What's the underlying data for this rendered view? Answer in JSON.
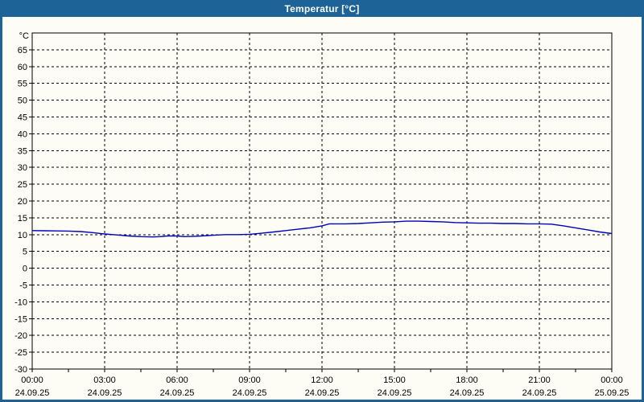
{
  "window": {
    "title": "Temperatur [°C]"
  },
  "colors": {
    "titlebar_bg": "#1d6398",
    "frame": "#1d6398",
    "title_text": "#ffffff",
    "plot_bg": "#fdfdf6",
    "grid": "#000000",
    "axis": "#000000",
    "line": "#0000bb",
    "label_text": "#000000"
  },
  "chart_data": {
    "type": "line",
    "title": "Temperatur [°C]",
    "xlabel": "",
    "ylabel": "°C",
    "ylim": [
      -30,
      70
    ],
    "y_tick_step": 5,
    "y_ticks": [
      65,
      60,
      55,
      50,
      45,
      40,
      35,
      30,
      25,
      20,
      15,
      10,
      5,
      0,
      -5,
      -10,
      -15,
      -20,
      -25,
      -30
    ],
    "grid": "dashed",
    "legend_position": "none",
    "x_hours_range": [
      0,
      24
    ],
    "x_minor_tick_step_hours": 1.5,
    "x_major_ticks": [
      {
        "hour": 0,
        "time": "00:00",
        "date": "24.09.25"
      },
      {
        "hour": 3,
        "time": "03:00",
        "date": "24.09.25"
      },
      {
        "hour": 6,
        "time": "06:00",
        "date": "24.09.25"
      },
      {
        "hour": 9,
        "time": "09:00",
        "date": "24.09.25"
      },
      {
        "hour": 12,
        "time": "12:00",
        "date": "24.09.25"
      },
      {
        "hour": 15,
        "time": "15:00",
        "date": "24.09.25"
      },
      {
        "hour": 18,
        "time": "18:00",
        "date": "24.09.25"
      },
      {
        "hour": 21,
        "time": "21:00",
        "date": "24.09.25"
      },
      {
        "hour": 24,
        "time": "00:00",
        "date": "25.09.25"
      }
    ],
    "series": [
      {
        "name": "Temperatur",
        "color": "#0000bb",
        "points_hour_value": [
          [
            0,
            11.2
          ],
          [
            0.5,
            11.15
          ],
          [
            1,
            11.1
          ],
          [
            1.5,
            11.05
          ],
          [
            2,
            10.9
          ],
          [
            2.5,
            10.6
          ],
          [
            3,
            10.2
          ],
          [
            3.5,
            9.9
          ],
          [
            4,
            9.6
          ],
          [
            4.5,
            9.4
          ],
          [
            5,
            9.3
          ],
          [
            5.3,
            9.4
          ],
          [
            5.6,
            9.6
          ],
          [
            6,
            9.6
          ],
          [
            6.3,
            9.4
          ],
          [
            6.7,
            9.5
          ],
          [
            7,
            9.6
          ],
          [
            7.5,
            9.8
          ],
          [
            8,
            10.0
          ],
          [
            8.5,
            10.0
          ],
          [
            9,
            10.1
          ],
          [
            9.5,
            10.4
          ],
          [
            10,
            10.8
          ],
          [
            10.5,
            11.2
          ],
          [
            11,
            11.6
          ],
          [
            11.5,
            12.0
          ],
          [
            12,
            12.6
          ],
          [
            12.3,
            13.2
          ],
          [
            12.7,
            13.2
          ],
          [
            13,
            13.2
          ],
          [
            13.5,
            13.3
          ],
          [
            14,
            13.5
          ],
          [
            14.5,
            13.7
          ],
          [
            15,
            13.8
          ],
          [
            15.5,
            14.0
          ],
          [
            16,
            14.0
          ],
          [
            16.5,
            13.9
          ],
          [
            17,
            13.8
          ],
          [
            17.5,
            13.6
          ],
          [
            18,
            13.5
          ],
          [
            18.5,
            13.4
          ],
          [
            19,
            13.4
          ],
          [
            19.5,
            13.3
          ],
          [
            20,
            13.3
          ],
          [
            20.5,
            13.2
          ],
          [
            21,
            13.2
          ],
          [
            21.5,
            13.1
          ],
          [
            22,
            12.6
          ],
          [
            22.5,
            12.0
          ],
          [
            23,
            11.4
          ],
          [
            23.5,
            10.8
          ],
          [
            24,
            10.3
          ]
        ]
      }
    ]
  }
}
